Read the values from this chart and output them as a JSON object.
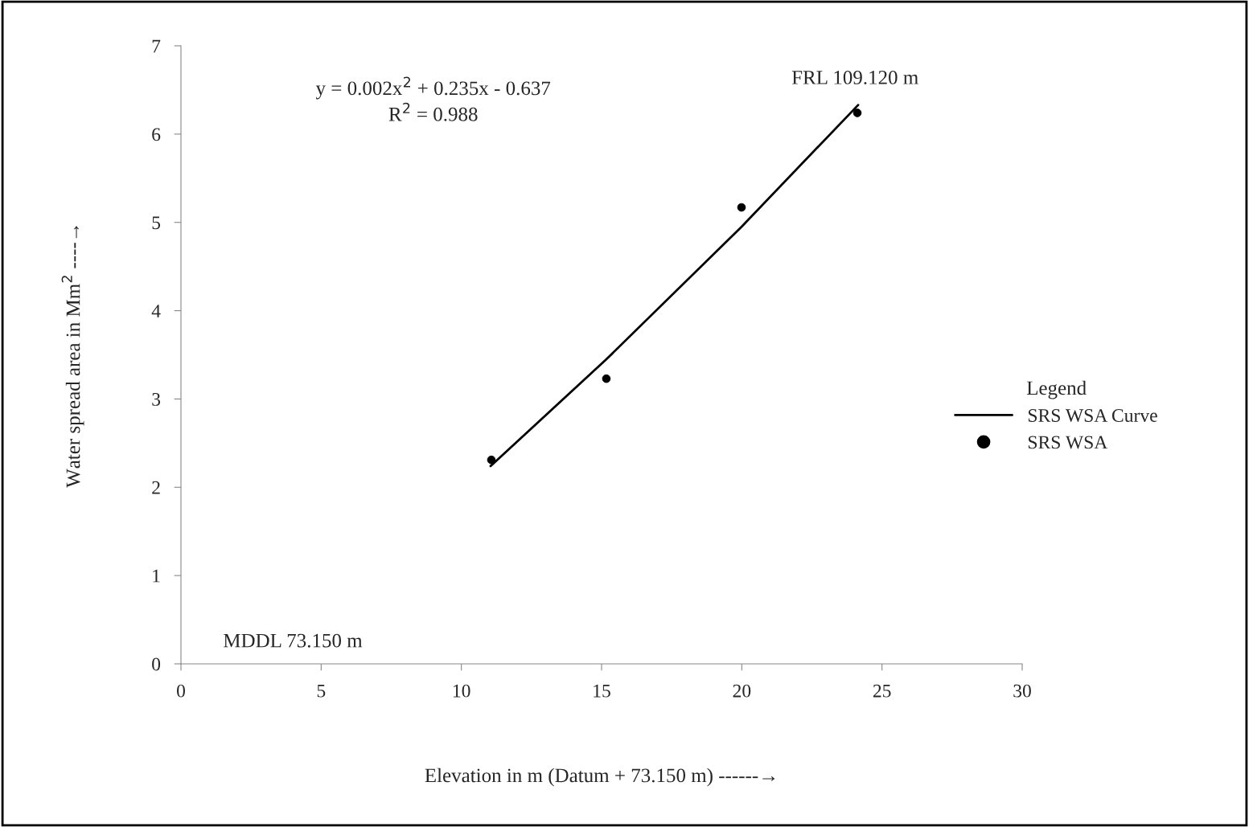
{
  "chart_data": {
    "type": "scatter",
    "xlabel": "Elevation in m (Datum + 73.150 m) ------→",
    "ylabel": "Water spread area in Mm$^{2}$ ----→",
    "xlim": [
      0,
      30
    ],
    "xticks": [
      0,
      5,
      10,
      15,
      20,
      25,
      30
    ],
    "ylim": [
      0,
      7
    ],
    "yticks": [
      0,
      1,
      2,
      3,
      4,
      5,
      6,
      7
    ],
    "series": [
      {
        "name": "SRS WSA Curve",
        "type": "line",
        "color": "#000000",
        "marker": "none",
        "line_style": "solid",
        "x": [
          11.04,
          15.14,
          19.99,
          24.15
        ],
        "values": [
          2.24,
          3.44,
          4.95,
          6.33
        ]
      },
      {
        "name": "SRS WSA",
        "color": "#000000",
        "marker": "circle",
        "x": [
          11.07,
          15.17,
          19.99,
          24.12
        ],
        "values": [
          2.31,
          3.23,
          5.17,
          6.24
        ]
      }
    ],
    "legend_title": "Legend",
    "legend": "right",
    "grid": false,
    "annotations": [
      "y = 0.002x$^{2}$ + 0.235x - 0.637\nR$^{2}$ = 0.988",
      {
        "text": "FRL 109.120 m",
        "x": 24.12,
        "y": 6.24
      },
      "MDDL 73.150 m"
    ]
  }
}
